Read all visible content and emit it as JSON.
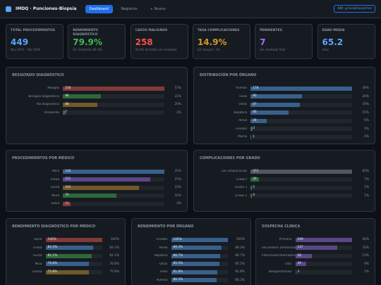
{
  "header": {
    "title": "IMDQ · Punciones-Biopsia",
    "tabs": [
      "Dashboard",
      "Registros",
      "+ Nuevo"
    ],
    "badge": "449 procedimientos"
  },
  "kpis": [
    {
      "label": "TOTAL PROCEDIMIENTOS",
      "value": "449",
      "sub": "Nov 2023 – Abr 2026",
      "color": "#58a6ff"
    },
    {
      "label": "RENDIMIENTO DIAGNÓSTICO",
      "value": "79.9%",
      "sub": "Sin limitación 84–8%",
      "color": "#3fb950"
    },
    {
      "label": "CASOS MALIGNOS",
      "value": "258",
      "sub": "58.4% del total con resultado",
      "color": "#f85149"
    },
    {
      "label": "TASA COMPLICACIONES",
      "value": "14.9%",
      "sub": "G2 (mayor): 1%",
      "color": "#d29922"
    },
    {
      "label": "PENDIENTES",
      "value": "7",
      "sub": "Sin resultado final",
      "color": "#a371f7"
    },
    {
      "label": "EDAD MEDIA",
      "value": "65.2",
      "sub": "años",
      "color": "#58a6ff"
    }
  ],
  "panels": [
    {
      "title": "RESULTADO DIAGNÓSTICO",
      "rows": [
        {
          "name": "Maligno",
          "value": 258,
          "pct": "57%",
          "color": "#f85149"
        },
        {
          "name": "Benigno diagnóstico",
          "value": 96,
          "pct": "21%",
          "color": "#3fb950"
        },
        {
          "name": "No diagnóstico",
          "value": 88,
          "pct": "20%",
          "color": "#d29922"
        },
        {
          "name": "Pendiente",
          "value": 7,
          "pct": "2%",
          "color": "#8b949e"
        }
      ]
    },
    {
      "title": "DISTRIBUCIÓN POR ÓRGANO",
      "rows": [
        {
          "name": "Pulmón",
          "value": 178,
          "pct": "39%",
          "color": "#58a6ff"
        },
        {
          "name": "Ósea",
          "value": 90,
          "pct": "20%",
          "color": "#58a6ff"
        },
        {
          "name": "Otras",
          "value": 87,
          "pct": "19%",
          "color": "#58a6ff"
        },
        {
          "name": "Hepática",
          "value": 66,
          "pct": "15%",
          "color": "#58a6ff"
        },
        {
          "name": "Renal",
          "value": 28,
          "pct": "6%",
          "color": "#58a6ff"
        },
        {
          "name": "Tiroides",
          "value": 3,
          "pct": "1%",
          "color": "#58a6ff"
        },
        {
          "name": "Mama",
          "value": 1,
          "pct": "0%",
          "color": "#58a6ff"
        }
      ]
    },
    {
      "title": "PROCEDIMIENTOS POR MÉDICO",
      "rows": [
        {
          "name": "Mico",
          "value": 140,
          "pct": "31%",
          "color": "#58a6ff"
        },
        {
          "name": "Ereaa",
          "value": 121,
          "pct": "27%",
          "color": "#a371f7"
        },
        {
          "name": "Gurza",
          "value": 105,
          "pct": "23%",
          "color": "#d29922"
        },
        {
          "name": "Mura",
          "value": 74,
          "pct": "16%",
          "color": "#3fb950"
        },
        {
          "name": "Salva",
          "value": 11,
          "pct": "2%",
          "color": "#f85149"
        }
      ]
    },
    {
      "title": "COMPLICACIONES POR GRADO",
      "rows": [
        {
          "name": "Sin complicación",
          "value": 371,
          "pct": "83%",
          "color": "#8b949e"
        },
        {
          "name": "Grado I",
          "value": 30,
          "pct": "7%",
          "color": "#3fb950"
        },
        {
          "name": "Grado 3",
          "value": 5,
          "pct": "1%",
          "color": "#58a6ff"
        },
        {
          "name": "Grado 2",
          "value": 4,
          "pct": "1%",
          "color": "#d29922"
        }
      ]
    },
    {
      "title": "RENDIMIENTO DIAGNÓSTICO POR MÉDICO",
      "rows": [
        {
          "name": "Salva",
          "value": 100,
          "value_label": "100%",
          "color": "#f85149"
        },
        {
          "name": "Ereaa",
          "value": 84.3,
          "value_label": "84.3%",
          "color": "#58a6ff"
        },
        {
          "name": "Gurza",
          "value": 81.1,
          "value_label": "81.1%",
          "color": "#3fb950"
        },
        {
          "name": "Mico",
          "value": 76.8,
          "value_label": "76.8%",
          "color": "#58a6ff"
        },
        {
          "name": "Gonza",
          "value": 75.8,
          "value_label": "75.8%",
          "color": "#d29922"
        }
      ]
    },
    {
      "title": "RENDIMIENTO POR ÓRGANO",
      "rows": [
        {
          "name": "Tiroides",
          "value": 100,
          "value_label": "100%",
          "color": "#58a6ff"
        },
        {
          "name": "Renal",
          "value": 89.3,
          "value_label": "89.3%",
          "color": "#58a6ff"
        },
        {
          "name": "Hepática",
          "value": 86.7,
          "value_label": "86.7%",
          "color": "#58a6ff"
        },
        {
          "name": "Otras",
          "value": 85.5,
          "value_label": "85.5%",
          "color": "#58a6ff"
        },
        {
          "name": "Ósea",
          "value": 81.8,
          "value_label": "81.8%",
          "color": "#58a6ff"
        },
        {
          "name": "Pulmón",
          "value": 80.3,
          "value_label": "80.3%",
          "color": "#58a6ff"
        }
      ]
    },
    {
      "title": "SOSPECHA CLÍNICA",
      "rows": [
        {
          "name": "Primario",
          "value": 199,
          "pct": "44%",
          "color": "#a371f7"
        },
        {
          "name": "Secundario (metástasis)",
          "value": 147,
          "pct": "33%",
          "color": "#a371f7"
        },
        {
          "name": "Infeccioso/inflamatorio",
          "value": 58,
          "pct": "13%",
          "color": "#a371f7"
        },
        {
          "name": "Otro",
          "value": 39,
          "pct": "9%",
          "color": "#a371f7"
        },
        {
          "name": "Benigno/Difuso",
          "value": 3,
          "pct": "1%",
          "color": "#a371f7"
        }
      ]
    }
  ]
}
